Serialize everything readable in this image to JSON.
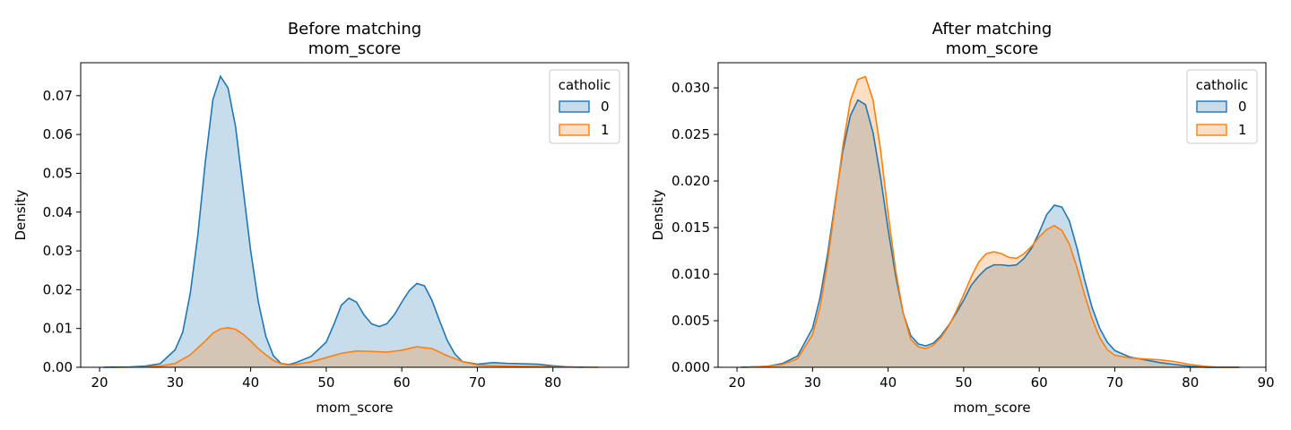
{
  "chart_data": [
    {
      "type": "area",
      "title": "Before matching\nmom_score",
      "xlabel": "mom_score",
      "ylabel": "Density",
      "xlim": [
        17.5,
        90
      ],
      "ylim": [
        0,
        0.0785
      ],
      "xticks": [
        "20",
        "30",
        "40",
        "50",
        "60",
        "70",
        "80"
      ],
      "yticks": [
        "0.00",
        "0.01",
        "0.02",
        "0.03",
        "0.04",
        "0.05",
        "0.06",
        "0.07"
      ],
      "legend": {
        "title": "catholic",
        "placement": "top-right"
      },
      "series": [
        {
          "name": "0",
          "color": "#1f77b4",
          "x": [
            20.5,
            24,
            26,
            28,
            30,
            31,
            32,
            33,
            34,
            35,
            36,
            37,
            38,
            39,
            40,
            41,
            42,
            43,
            44,
            45,
            46,
            48,
            50,
            51,
            52,
            53,
            54,
            55,
            56,
            57,
            58,
            59,
            60,
            61,
            62,
            63,
            64,
            65,
            66,
            67,
            68,
            70,
            72,
            74,
            76,
            78,
            80,
            82,
            84
          ],
          "y": [
            0.0,
            0.0001,
            0.0003,
            0.0009,
            0.0045,
            0.009,
            0.019,
            0.034,
            0.053,
            0.069,
            0.075,
            0.072,
            0.062,
            0.046,
            0.03,
            0.017,
            0.008,
            0.003,
            0.001,
            0.0007,
            0.0012,
            0.0028,
            0.0065,
            0.011,
            0.016,
            0.0178,
            0.0168,
            0.0135,
            0.0112,
            0.0105,
            0.0112,
            0.0135,
            0.0168,
            0.0198,
            0.0216,
            0.021,
            0.0172,
            0.012,
            0.007,
            0.0035,
            0.0015,
            0.0008,
            0.0012,
            0.001,
            0.0009,
            0.0008,
            0.0004,
            0.0001,
            0.0
          ]
        },
        {
          "name": "1",
          "color": "#ff7f0e",
          "x": [
            22,
            26,
            28,
            30,
            32,
            34,
            35,
            36,
            37,
            38,
            39,
            40,
            41,
            42,
            43,
            44,
            45,
            46,
            48,
            50,
            52,
            54,
            56,
            58,
            60,
            62,
            64,
            66,
            68,
            70,
            74,
            78,
            82,
            86
          ],
          "y": [
            0.0,
            0.0001,
            0.0003,
            0.001,
            0.0032,
            0.0068,
            0.0088,
            0.0099,
            0.0102,
            0.0098,
            0.0085,
            0.0068,
            0.0048,
            0.0032,
            0.0018,
            0.0009,
            0.0006,
            0.0007,
            0.0014,
            0.0025,
            0.0036,
            0.0042,
            0.0041,
            0.0039,
            0.0044,
            0.0053,
            0.0048,
            0.003,
            0.0015,
            0.0006,
            0.0003,
            0.0002,
            0.0001,
            0.0
          ]
        }
      ]
    },
    {
      "type": "area",
      "title": "After matching\nmom_score",
      "xlabel": "mom_score",
      "ylabel": "Density",
      "xlim": [
        17.5,
        90
      ],
      "ylim": [
        0,
        0.0327
      ],
      "xticks": [
        "20",
        "30",
        "40",
        "50",
        "60",
        "70",
        "80",
        "90"
      ],
      "yticks": [
        "0.000",
        "0.005",
        "0.010",
        "0.015",
        "0.020",
        "0.025",
        "0.030"
      ],
      "legend": {
        "title": "catholic",
        "placement": "top-right"
      },
      "series": [
        {
          "name": "0",
          "color": "#1f77b4",
          "x": [
            20.5,
            24,
            26,
            28,
            30,
            31,
            32,
            33,
            34,
            35,
            36,
            37,
            38,
            39,
            40,
            41,
            42,
            43,
            44,
            45,
            46,
            47,
            48,
            49,
            50,
            51,
            52,
            53,
            54,
            55,
            56,
            57,
            58,
            59,
            60,
            61,
            62,
            63,
            64,
            65,
            66,
            67,
            68,
            69,
            70,
            72,
            74,
            76,
            78,
            80,
            82,
            84,
            86.5
          ],
          "y": [
            0.0,
            0.0001,
            0.0004,
            0.0012,
            0.0042,
            0.0075,
            0.0122,
            0.0178,
            0.0232,
            0.027,
            0.0287,
            0.0282,
            0.0252,
            0.0204,
            0.0148,
            0.0098,
            0.0058,
            0.0034,
            0.0025,
            0.0023,
            0.0026,
            0.0034,
            0.0045,
            0.0058,
            0.0072,
            0.0088,
            0.0098,
            0.0106,
            0.011,
            0.011,
            0.0109,
            0.011,
            0.0117,
            0.0128,
            0.0145,
            0.0164,
            0.0174,
            0.0172,
            0.0157,
            0.0128,
            0.0094,
            0.0064,
            0.0042,
            0.0027,
            0.0018,
            0.0011,
            0.0008,
            0.0005,
            0.0003,
            0.0001,
            0.0,
            0.0,
            0.0
          ]
        },
        {
          "name": "1",
          "color": "#ff7f0e",
          "x": [
            21,
            24,
            26,
            28,
            30,
            31,
            32,
            33,
            34,
            35,
            36,
            37,
            38,
            39,
            40,
            41,
            42,
            43,
            44,
            45,
            46,
            47,
            48,
            49,
            50,
            51,
            52,
            53,
            54,
            55,
            56,
            57,
            58,
            59,
            60,
            61,
            62,
            63,
            64,
            65,
            66,
            67,
            68,
            69,
            70,
            72,
            74,
            76,
            78,
            80,
            82,
            84,
            86.5
          ],
          "y": [
            0.0,
            0.0001,
            0.0003,
            0.0009,
            0.0035,
            0.0065,
            0.0114,
            0.0175,
            0.0237,
            0.0286,
            0.0309,
            0.0312,
            0.0287,
            0.0234,
            0.0165,
            0.0104,
            0.0058,
            0.003,
            0.0022,
            0.002,
            0.0024,
            0.0032,
            0.0044,
            0.006,
            0.0078,
            0.0097,
            0.0113,
            0.0122,
            0.0124,
            0.0122,
            0.0118,
            0.0117,
            0.0122,
            0.013,
            0.014,
            0.0148,
            0.0152,
            0.0147,
            0.0132,
            0.0107,
            0.0078,
            0.0052,
            0.0032,
            0.0019,
            0.0013,
            0.001,
            0.0009,
            0.0008,
            0.0006,
            0.0003,
            0.0001,
            0.0,
            0.0
          ]
        }
      ]
    }
  ]
}
